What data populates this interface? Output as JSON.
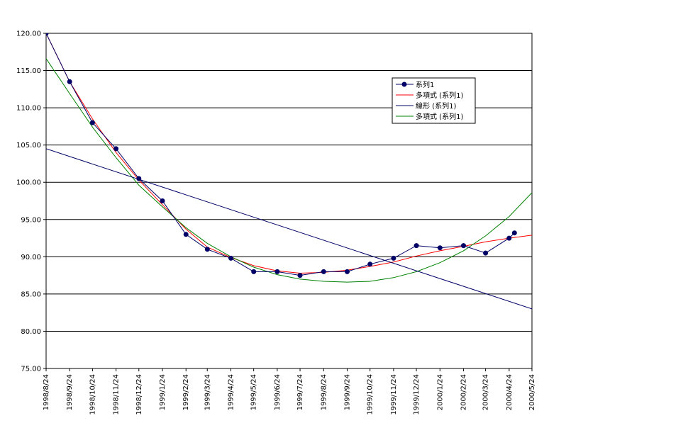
{
  "chart_data": {
    "type": "line",
    "title": "",
    "xlabel": "",
    "ylabel": "",
    "ylim": [
      75,
      120
    ],
    "yticks": [
      "120.00",
      "115.00",
      "110.00",
      "105.00",
      "100.00",
      "95.00",
      "90.00",
      "85.00",
      "80.00",
      "75.00"
    ],
    "xticks": [
      "1998/8/24",
      "1998/9/24",
      "1998/10/24",
      "1998/11/24",
      "1998/12/24",
      "1999/1/24",
      "1999/2/24",
      "1999/3/24",
      "1999/4/24",
      "1999/5/24",
      "1999/6/24",
      "1999/7/24",
      "1999/8/24",
      "1999/9/24",
      "1999/10/24",
      "1999/11/24",
      "1999/12/24",
      "2000/1/24",
      "2000/2/24",
      "2000/3/24",
      "2000/4/24",
      "2000/5/24"
    ],
    "grid": "horizontal",
    "legend_position": "right",
    "series": [
      {
        "name": "系列1",
        "style": "line-markers",
        "color": "#000066",
        "x": [
          "1998/8/24",
          "1998/9/24",
          "1998/10/24",
          "1998/11/24",
          "1998/12/24",
          "1999/1/24",
          "1999/2/24",
          "1999/3/24",
          "1999/4/24",
          "1999/5/24",
          "1999/6/24",
          "1999/7/24",
          "1999/8/24",
          "1999/9/24",
          "1999/10/24",
          "1999/11/24",
          "1999/12/24",
          "2000/1/24",
          "2000/2/24",
          "2000/3/24",
          "2000/4/24",
          "2000/5/1"
        ],
        "values": [
          120.0,
          113.5,
          108.0,
          104.5,
          100.5,
          97.5,
          93.0,
          91.0,
          89.8,
          88.0,
          88.0,
          87.5,
          88.0,
          88.0,
          89.0,
          89.8,
          91.5,
          91.2,
          91.5,
          90.5,
          92.5,
          93.2
        ]
      },
      {
        "name": "多項式 (系列1)",
        "style": "line",
        "color": "#ff0000",
        "x": [
          "1998/8/24",
          "1998/9/24",
          "1998/10/24",
          "1998/11/24",
          "1998/12/24",
          "1999/1/24",
          "1999/2/24",
          "1999/3/24",
          "1999/4/24",
          "1999/5/24",
          "1999/6/24",
          "1999/7/24",
          "1999/8/24",
          "1999/9/24",
          "1999/10/24",
          "1999/11/24",
          "1999/12/24",
          "2000/1/24",
          "2000/2/24",
          "2000/3/24",
          "2000/4/24",
          "2000/5/24"
        ],
        "values": [
          120.0,
          113.5,
          108.5,
          104.0,
          100.3,
          97.0,
          93.7,
          91.3,
          89.9,
          88.8,
          88.1,
          87.8,
          87.9,
          88.2,
          88.7,
          89.3,
          90.1,
          90.8,
          91.4,
          92.0,
          92.5,
          92.9
        ]
      },
      {
        "name": "線形 (系列1)",
        "style": "line",
        "color": "#000066",
        "x": [
          "1998/8/24",
          "2000/5/24"
        ],
        "values": [
          104.5,
          83.0
        ]
      },
      {
        "name": "多項式 (系列1)",
        "style": "line",
        "color": "#008000",
        "x": [
          "1998/8/24",
          "1998/9/24",
          "1998/10/24",
          "1998/11/24",
          "1998/12/24",
          "1999/1/24",
          "1999/2/24",
          "1999/3/24",
          "1999/4/24",
          "1999/5/24",
          "1999/6/24",
          "1999/7/24",
          "1999/8/24",
          "1999/9/24",
          "1999/10/24",
          "1999/11/24",
          "1999/12/24",
          "2000/1/24",
          "2000/2/24",
          "2000/3/24",
          "2000/4/24",
          "2000/5/24"
        ],
        "values": [
          116.6,
          111.9,
          107.4,
          103.3,
          99.6,
          96.7,
          93.9,
          91.8,
          90.0,
          88.6,
          87.6,
          87.0,
          86.7,
          86.6,
          86.7,
          87.2,
          88.0,
          89.2,
          90.8,
          92.8,
          95.4,
          98.6
        ]
      }
    ]
  }
}
